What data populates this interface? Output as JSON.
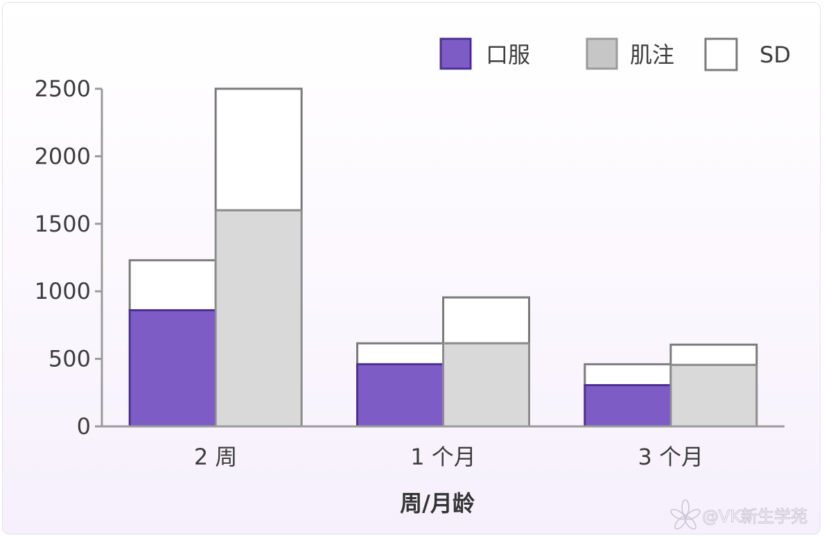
{
  "chart_data": {
    "type": "bar",
    "stacked_error_bars": true,
    "categories": [
      "2 周",
      "1 个月",
      "3 个月"
    ],
    "series": [
      {
        "name": "口服",
        "values": [
          860,
          460,
          305
        ],
        "sd": [
          370,
          155,
          155
        ],
        "color": "#7e5cc6",
        "stroke": "#4b2f96"
      },
      {
        "name": "肌注",
        "values": [
          1600,
          615,
          455
        ],
        "sd": [
          900,
          340,
          150
        ],
        "color": "#d9d9d9",
        "stroke": "#8c8c8c"
      }
    ],
    "sd_label": "SD",
    "sd_color": "#ffffff",
    "xlabel": "周/月龄",
    "ylabel": "",
    "ylim": [
      0,
      2500
    ],
    "yticks": [
      "0",
      "500",
      "1000",
      "1500",
      "2000",
      "2500"
    ],
    "legend_position": "top-right",
    "grid": false
  },
  "watermark": {
    "text": "@VK新生学苑",
    "icon": "flower-logo-icon"
  }
}
